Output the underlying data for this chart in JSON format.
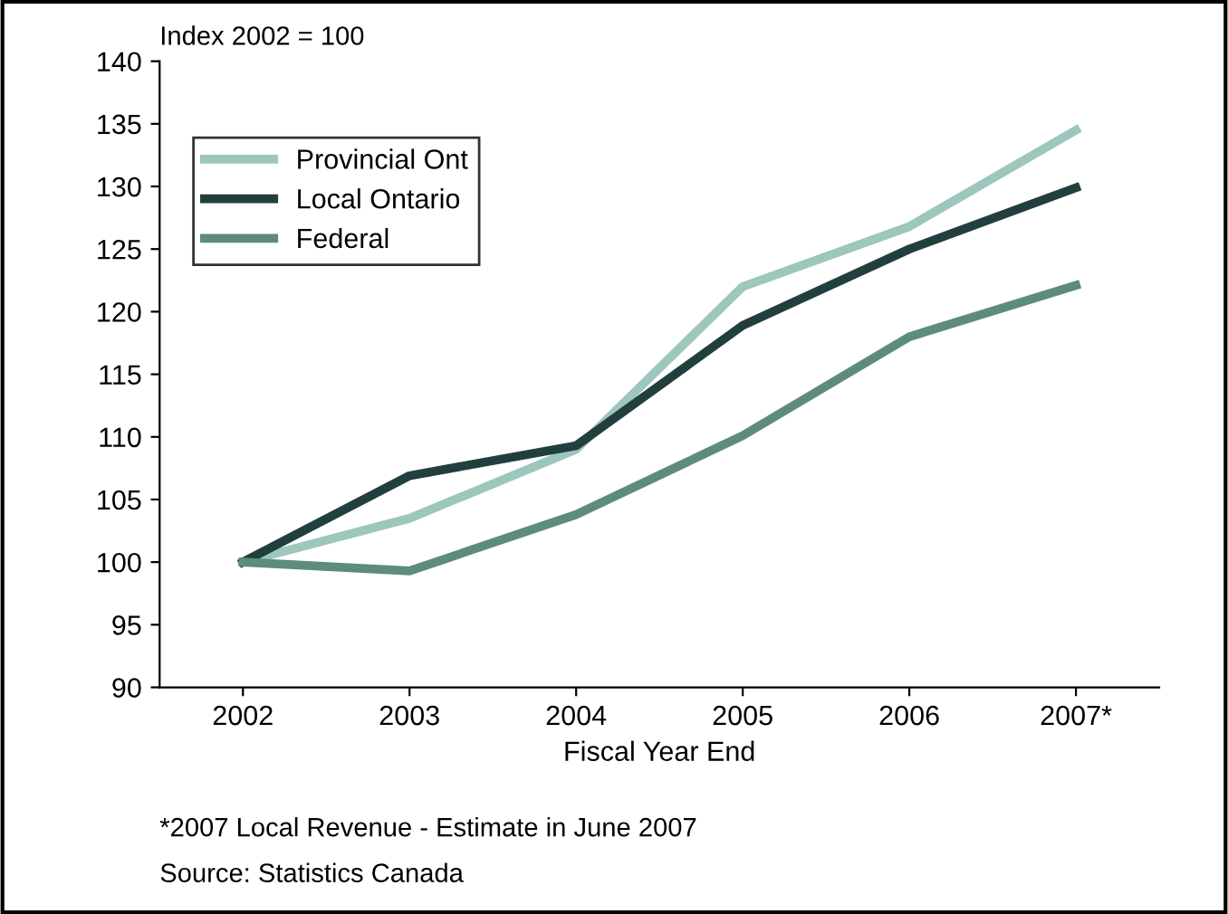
{
  "chart_data": {
    "type": "line",
    "ylabel": "Index 2002 = 100",
    "xlabel": "Fiscal Year End",
    "categories": [
      "2002",
      "2003",
      "2004",
      "2005",
      "2006",
      "2007*"
    ],
    "series": [
      {
        "name": "Provincial Ont",
        "color": "#9dc6bd",
        "values": [
          100,
          103.5,
          109,
          122,
          126.8,
          134.5
        ]
      },
      {
        "name": "Local Ontario",
        "color": "#213f3d",
        "values": [
          100,
          106.9,
          109.3,
          118.9,
          125,
          129.9
        ]
      },
      {
        "name": "Federal",
        "color": "#5e8c7c",
        "values": [
          100,
          99.3,
          103.8,
          110.1,
          118,
          122.1
        ]
      }
    ],
    "ylim": [
      90,
      140
    ],
    "yticks": [
      90,
      95,
      100,
      105,
      110,
      115,
      120,
      125,
      130,
      135,
      140
    ],
    "grid": false,
    "legend": "top left",
    "marker": "none",
    "line_style": "solid",
    "annotations": [
      "*2007 Local Revenue - Estimate in June 2007",
      "Source: Statistics Canada"
    ]
  }
}
